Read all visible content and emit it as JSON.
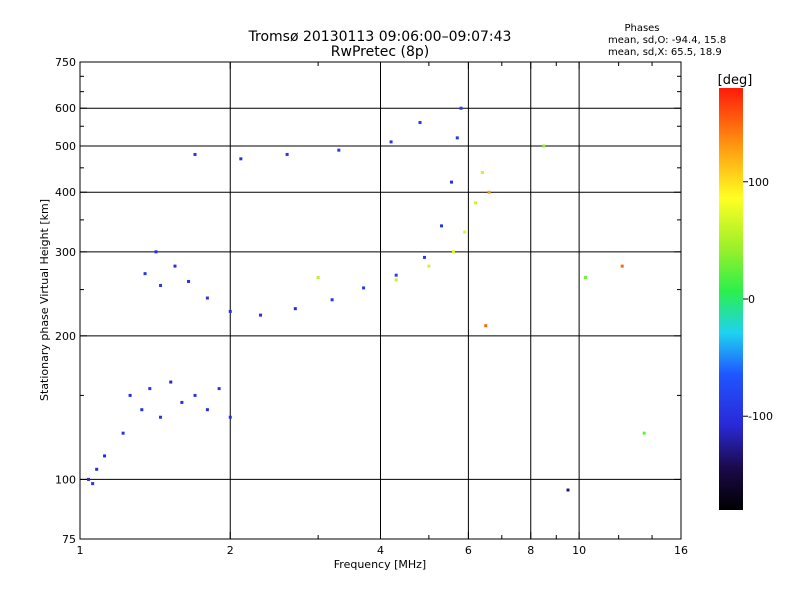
{
  "chart_data": {
    "type": "scatter",
    "title": "Tromsø 20130113 09:06:00–09:07:43",
    "subtitle": "RwPretec (8p)",
    "phases_header": "Phases",
    "phases_line1": "mean, sd,O: -94.4, 15.8",
    "phases_line2": "mean, sd,X:  65.5, 18.9",
    "xlabel": "Frequency [MHz]",
    "ylabel": "Stationary phase Virtual Height [km]",
    "xscale": "log",
    "yscale": "log",
    "xlim": [
      1,
      16
    ],
    "ylim": [
      75,
      750
    ],
    "xticks": [
      1,
      2,
      4,
      6,
      8,
      10,
      16
    ],
    "xtick_labels": [
      "1",
      "2",
      "4",
      "6",
      "8",
      "10",
      "16"
    ],
    "xgrid": [
      2,
      4,
      6,
      8,
      10
    ],
    "xminor": [
      3,
      5,
      7,
      9,
      12,
      14
    ],
    "yticks": [
      75,
      100,
      200,
      300,
      400,
      500,
      600,
      750
    ],
    "ytick_labels": [
      "75",
      "100",
      "200",
      "300",
      "400",
      "500",
      "600",
      "750"
    ],
    "ygrid": [
      100,
      200,
      300,
      400,
      500,
      600
    ],
    "yminor": [
      150,
      250,
      350,
      450,
      550,
      650,
      700
    ],
    "colorbar": {
      "label": "[deg]",
      "range": [
        -180,
        180
      ],
      "ticks": [
        100,
        0,
        -100
      ],
      "tick_labels": [
        "100",
        "0",
        "-100"
      ]
    },
    "colors": {
      "low_phase": "#1a2fd8",
      "high_phase": "#e8e010",
      "grid": "#000000"
    },
    "series": [
      {
        "values": [
          {
            "x": 1.04,
            "y": 100,
            "phase": -110
          },
          {
            "x": 1.06,
            "y": 98,
            "phase": -95
          },
          {
            "x": 1.08,
            "y": 105,
            "phase": -100
          },
          {
            "x": 1.12,
            "y": 112,
            "phase": -105
          },
          {
            "x": 1.22,
            "y": 125,
            "phase": -95
          },
          {
            "x": 1.26,
            "y": 150,
            "phase": -100
          },
          {
            "x": 1.33,
            "y": 140,
            "phase": -100
          },
          {
            "x": 1.38,
            "y": 155,
            "phase": -95
          },
          {
            "x": 1.45,
            "y": 135,
            "phase": -95
          },
          {
            "x": 1.52,
            "y": 160,
            "phase": -110
          },
          {
            "x": 1.6,
            "y": 145,
            "phase": -100
          },
          {
            "x": 1.7,
            "y": 150,
            "phase": -95
          },
          {
            "x": 1.8,
            "y": 140,
            "phase": -100
          },
          {
            "x": 1.9,
            "y": 155,
            "phase": -95
          },
          {
            "x": 2.0,
            "y": 135,
            "phase": -100
          },
          {
            "x": 1.35,
            "y": 270,
            "phase": -95
          },
          {
            "x": 1.42,
            "y": 300,
            "phase": -100
          },
          {
            "x": 1.45,
            "y": 255,
            "phase": -90
          },
          {
            "x": 1.55,
            "y": 280,
            "phase": -100
          },
          {
            "x": 1.65,
            "y": 260,
            "phase": -100
          },
          {
            "x": 1.8,
            "y": 240,
            "phase": -95
          },
          {
            "x": 2.0,
            "y": 225,
            "phase": -100
          },
          {
            "x": 2.3,
            "y": 221,
            "phase": -100
          },
          {
            "x": 2.7,
            "y": 228,
            "phase": -105
          },
          {
            "x": 3.2,
            "y": 238,
            "phase": -95
          },
          {
            "x": 3.7,
            "y": 252,
            "phase": -90
          },
          {
            "x": 4.3,
            "y": 268,
            "phase": -85
          },
          {
            "x": 4.9,
            "y": 292,
            "phase": -90
          },
          {
            "x": 5.3,
            "y": 340,
            "phase": -95
          },
          {
            "x": 5.55,
            "y": 420,
            "phase": -100
          },
          {
            "x": 5.7,
            "y": 520,
            "phase": -95
          },
          {
            "x": 5.8,
            "y": 600,
            "phase": -90
          },
          {
            "x": 1.7,
            "y": 480,
            "phase": -95
          },
          {
            "x": 2.1,
            "y": 470,
            "phase": -100
          },
          {
            "x": 2.6,
            "y": 480,
            "phase": -95
          },
          {
            "x": 3.3,
            "y": 490,
            "phase": -90
          },
          {
            "x": 4.2,
            "y": 510,
            "phase": -95
          },
          {
            "x": 4.8,
            "y": 560,
            "phase": -90
          },
          {
            "x": 3.0,
            "y": 265,
            "phase": 55
          },
          {
            "x": 4.3,
            "y": 262,
            "phase": 60
          },
          {
            "x": 5.0,
            "y": 280,
            "phase": 65
          },
          {
            "x": 5.6,
            "y": 300,
            "phase": 65
          },
          {
            "x": 5.9,
            "y": 330,
            "phase": 70
          },
          {
            "x": 6.2,
            "y": 380,
            "phase": 65
          },
          {
            "x": 6.4,
            "y": 440,
            "phase": 60
          },
          {
            "x": 6.6,
            "y": 400,
            "phase": 130
          },
          {
            "x": 6.5,
            "y": 210,
            "phase": 150
          },
          {
            "x": 10.3,
            "y": 265,
            "phase": 30
          },
          {
            "x": 12.2,
            "y": 280,
            "phase": 150
          },
          {
            "x": 13.5,
            "y": 125,
            "phase": 25
          },
          {
            "x": 9.5,
            "y": 95,
            "phase": -130
          },
          {
            "x": 8.5,
            "y": 500,
            "phase": 40
          }
        ]
      }
    ]
  }
}
